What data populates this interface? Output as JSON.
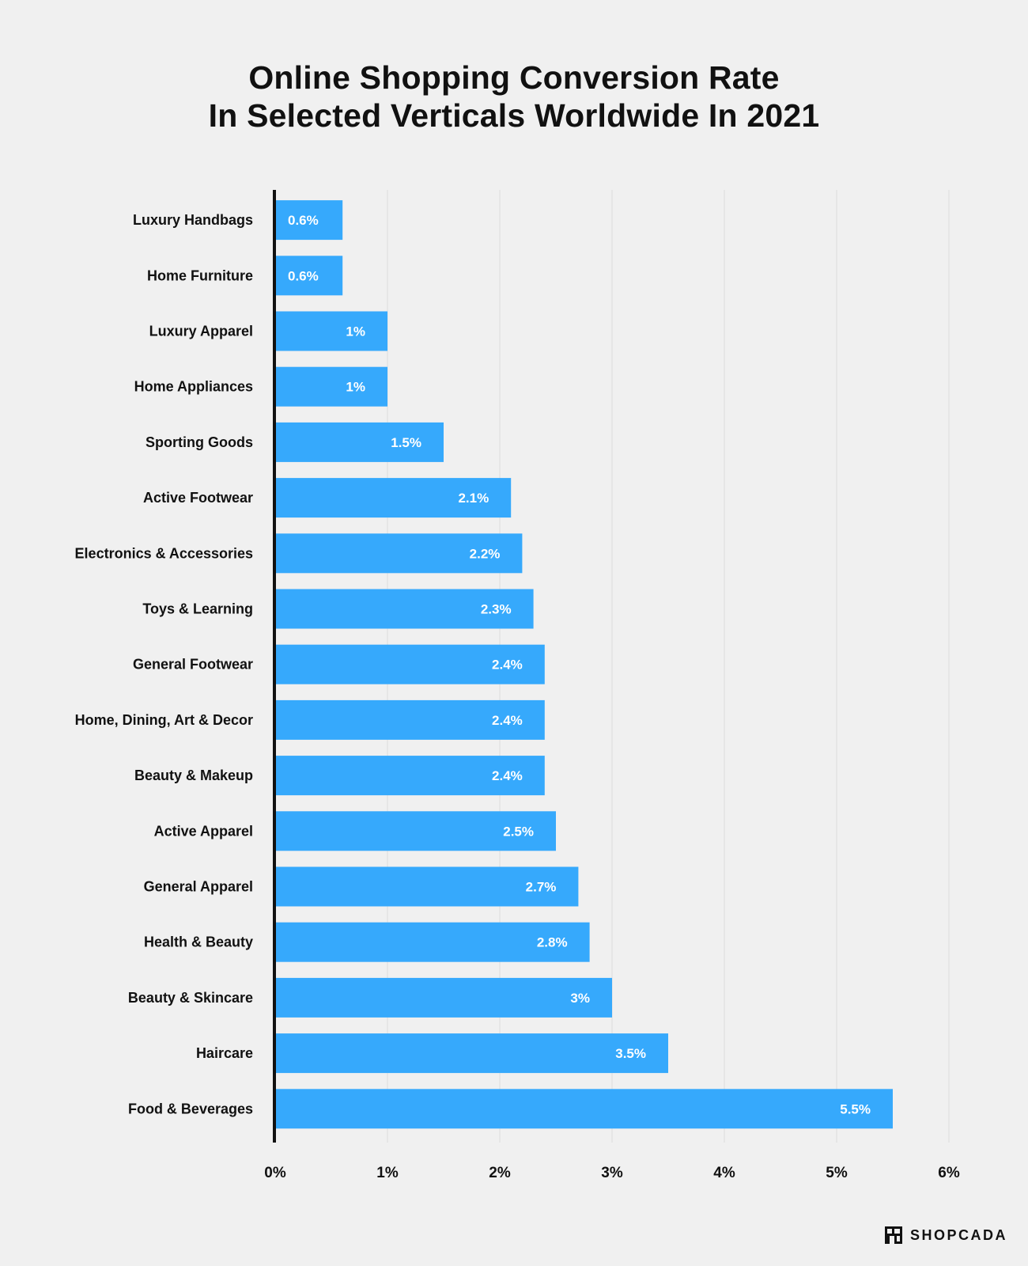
{
  "title": {
    "line1": "Online Shopping Conversion Rate",
    "line2": "In Selected Verticals Worldwide In 2021"
  },
  "brand": {
    "name": "SHOPCADA"
  },
  "colors": {
    "bar": "#36a9fc",
    "background": "#f0f0f0",
    "axis": "#111111",
    "grid": "#dcdcdc"
  },
  "chart_data": {
    "type": "bar",
    "orientation": "horizontal",
    "title": "Online Shopping Conversion Rate In Selected Verticals Worldwide In 2021",
    "xlabel": "",
    "ylabel": "",
    "xlim": [
      0,
      6
    ],
    "grid": true,
    "unit": "%",
    "categories": [
      "Luxury Handbags",
      "Home Furniture",
      "Luxury Apparel",
      "Home Appliances",
      "Sporting Goods",
      "Active Footwear",
      "Electronics & Accessories",
      "Toys & Learning",
      "General Footwear",
      "Home, Dining, Art & Decor",
      "Beauty & Makeup",
      "Active Apparel",
      "General Apparel",
      "Health & Beauty",
      "Beauty & Skincare",
      "Haircare",
      "Food & Beverages"
    ],
    "values": [
      0.6,
      0.6,
      1,
      1,
      1.5,
      2.1,
      2.2,
      2.3,
      2.4,
      2.4,
      2.4,
      2.5,
      2.7,
      2.8,
      3,
      3.5,
      5.5
    ],
    "value_labels": [
      "0.6%",
      "0.6%",
      "1%",
      "1%",
      "1.5%",
      "2.1%",
      "2.2%",
      "2.3%",
      "2.4%",
      "2.4%",
      "2.4%",
      "2.5%",
      "2.7%",
      "2.8%",
      "3%",
      "3.5%",
      "5.5%"
    ],
    "ticks": [
      0,
      1,
      2,
      3,
      4,
      5,
      6
    ],
    "tick_labels": [
      "0%",
      "1%",
      "2%",
      "3%",
      "4%",
      "5%",
      "6%"
    ]
  }
}
